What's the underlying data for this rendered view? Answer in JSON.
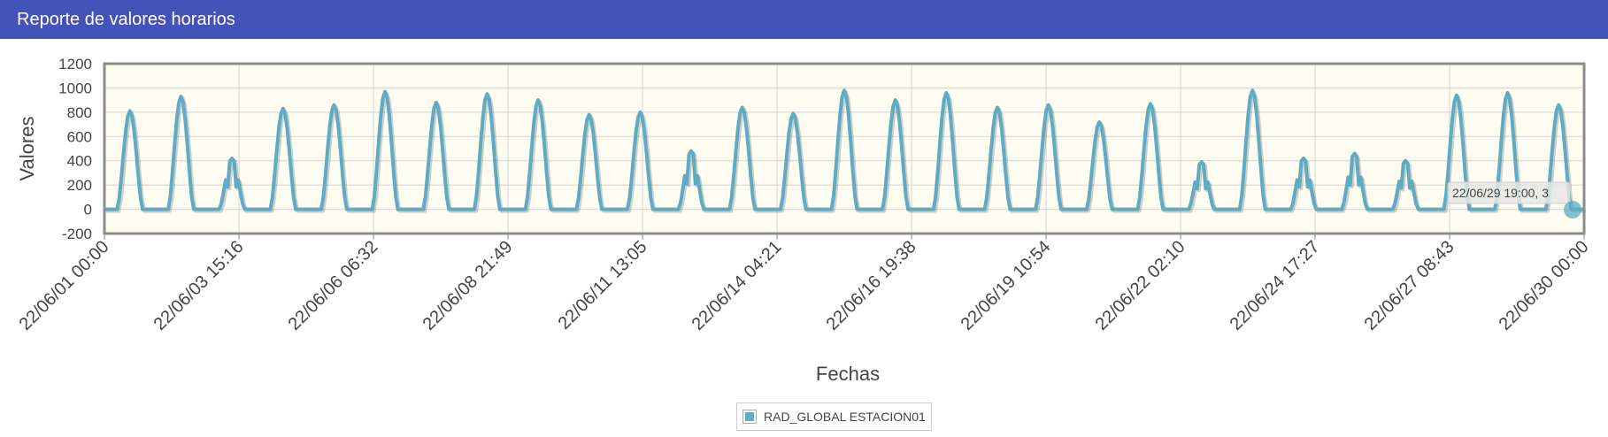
{
  "header": {
    "title": "Reporte de valores horarios"
  },
  "colors": {
    "header": "#4353b8",
    "series": "#5eacc4",
    "plot_bg": "#fffcf2"
  },
  "tooltip": {
    "text": "22/06/29 19:00, 3"
  },
  "chart_data": {
    "type": "line",
    "title": "",
    "xlabel": "Fechas",
    "ylabel": "Valores",
    "ylim": [
      -200,
      1200
    ],
    "yticks": [
      -200,
      0,
      200,
      400,
      600,
      800,
      1000,
      1200
    ],
    "x_range": [
      "22/06/01 00:00",
      "22/06/30 00:00"
    ],
    "x_tick_labels": [
      "22/06/01 00:00",
      "22/06/03 15:16",
      "22/06/06 06:32",
      "22/06/08 21:49",
      "22/06/11 13:05",
      "22/06/14 04:21",
      "22/06/16 19:38",
      "22/06/19 10:54",
      "22/06/22 02:10",
      "22/06/24 17:27",
      "22/06/27 08:43",
      "22/06/30 00:00"
    ],
    "grid": true,
    "legend_position": "bottom",
    "series": [
      {
        "name": "RAD_GLOBAL ESTACION01",
        "note_daily_peaks": "hourly values; daily peaks (22/06/01 to 22/06/29) in chronological order",
        "daily_peaks": [
          810,
          930,
          420,
          830,
          860,
          970,
          880,
          950,
          900,
          780,
          800,
          480,
          840,
          790,
          980,
          900,
          960,
          840,
          860,
          720,
          870,
          390,
          980,
          420,
          460,
          400,
          940,
          960,
          860
        ]
      }
    ]
  },
  "legend": {
    "items": [
      {
        "label": "RAD_GLOBAL ESTACION01"
      }
    ]
  }
}
